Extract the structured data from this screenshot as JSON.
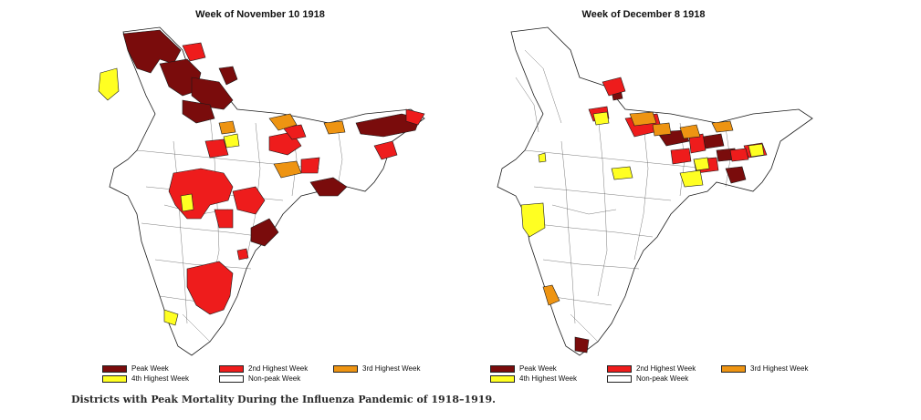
{
  "colors": {
    "peak": "#7a0c0c",
    "second": "#ee1c1c",
    "third": "#ee9412",
    "fourth": "#ffff22",
    "nonpeak": "#ffffff",
    "outline": "#1a1a1a"
  },
  "maps": [
    {
      "title": "Week of  November 10 1918"
    },
    {
      "title": "Week of  December 8 1918"
    }
  ],
  "legend": [
    {
      "label": "Peak Week",
      "color_key": "peak"
    },
    {
      "label": "2nd Highest Week",
      "color_key": "second"
    },
    {
      "label": "3rd Highest Week",
      "color_key": "third"
    },
    {
      "label": "4th Highest Week",
      "color_key": "fourth"
    },
    {
      "label": "Non-peak Week",
      "color_key": "nonpeak"
    }
  ],
  "caption": "Districts with Peak Mortality During the Influenza Pandemic of 1918–1919."
}
